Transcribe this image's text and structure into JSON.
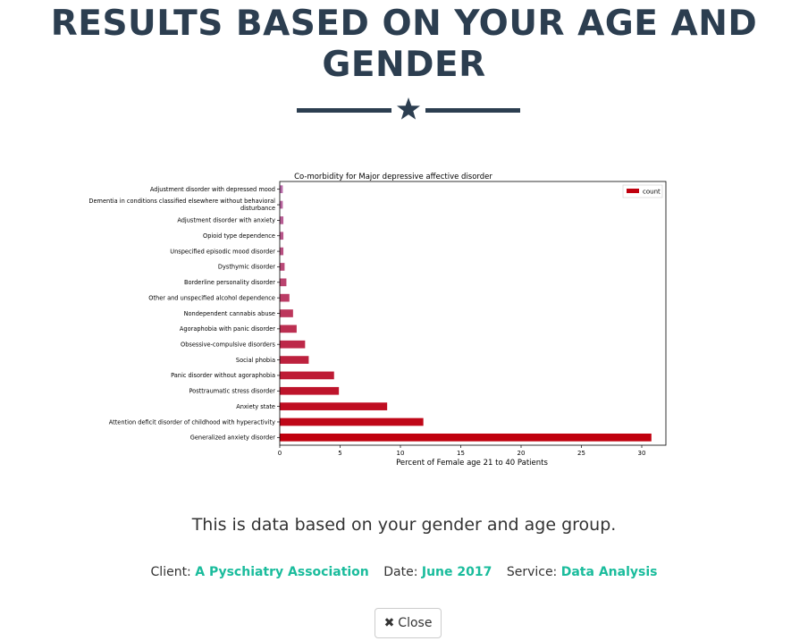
{
  "header": {
    "title": "RESULTS BASED ON YOUR AGE AND GENDER"
  },
  "icons": {
    "divider_star": "star-icon",
    "close": "times-icon"
  },
  "colors": {
    "heading": "#2c3e50",
    "accent": "#1abc9c",
    "bar_high": "#c0000e",
    "bar_low": "#b76ba8"
  },
  "chart_data": {
    "type": "bar",
    "orientation": "horizontal",
    "title": "Co-morbidity for Major depressive affective disorder",
    "xlabel": "Percent of Female age 21 to 40 Patients",
    "ylabel": "",
    "xlim": [
      0,
      32
    ],
    "xticks": [
      0,
      5,
      10,
      15,
      20,
      25,
      30
    ],
    "legend": {
      "position": "top-right",
      "label": "count"
    },
    "categories": [
      "Adjustment disorder with depressed mood",
      "Dementia in conditions classified elsewhere without behavioral disturbance",
      "Adjustment disorder with anxiety",
      "Opioid type dependence",
      "Unspecified episodic mood disorder",
      "Dysthymic disorder",
      "Borderline personality disorder",
      "Other and unspecified alcohol dependence",
      "Nondependent cannabis abuse",
      "Agoraphobia with panic disorder",
      "Obsessive-compulsive disorders",
      "Social phobia",
      "Panic disorder without agoraphobia",
      "Posttraumatic stress disorder",
      "Anxiety state",
      "Attention deficit disorder of childhood with hyperactivity",
      "Generalized anxiety disorder"
    ],
    "values": [
      0.25,
      0.25,
      0.3,
      0.3,
      0.3,
      0.4,
      0.55,
      0.8,
      1.1,
      1.4,
      2.1,
      2.4,
      4.5,
      4.9,
      8.9,
      11.9,
      30.8
    ]
  },
  "main": {
    "description": "This is data based on your gender and age group."
  },
  "meta": {
    "client_label": "Client:",
    "client_value": "A Pyschiatry Association",
    "date_label": "Date:",
    "date_value": "June 2017",
    "service_label": "Service:",
    "service_value": "Data Analysis"
  },
  "footer": {
    "close_label": "Close"
  }
}
